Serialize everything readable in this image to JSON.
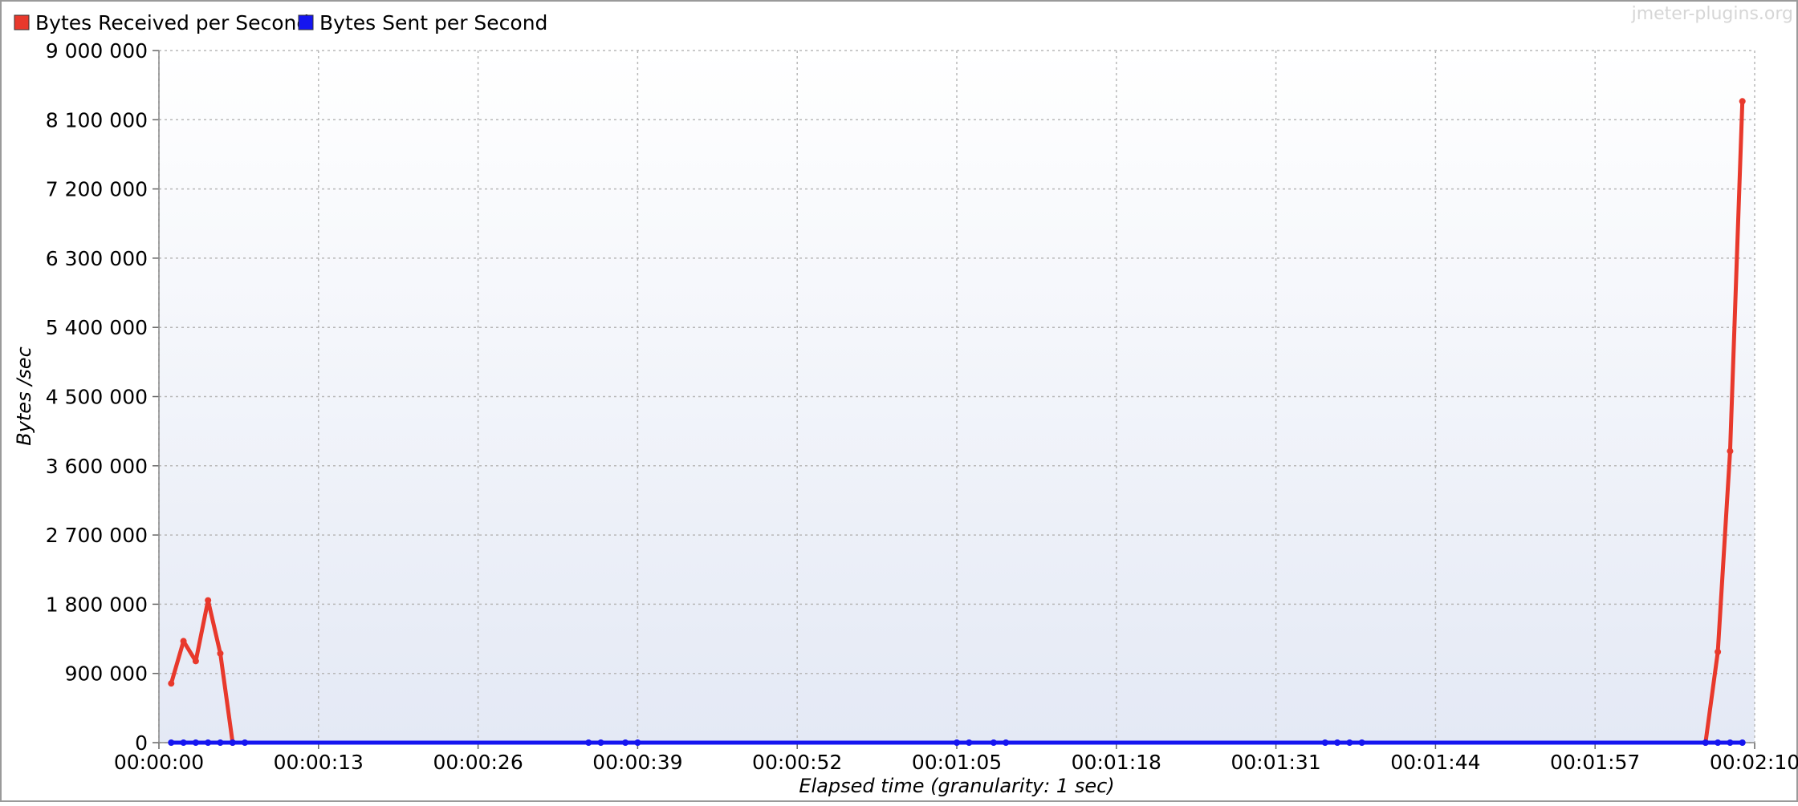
{
  "watermark": "jmeter-plugins.org",
  "colors": {
    "received": "#e8392c",
    "sent": "#1515f0",
    "grid": "#b8b8b8",
    "plot_bg_top": "#ffffff",
    "plot_bg_bottom": "#e4e9f5"
  },
  "chart_data": {
    "type": "line",
    "title": "",
    "xlabel": "Elapsed time (granularity: 1 sec)",
    "ylabel": "Bytes /sec",
    "xlim": [
      0,
      130
    ],
    "ylim": [
      0,
      9000000
    ],
    "grid": true,
    "legend_position": "top-left",
    "x_ticks": [
      0,
      13,
      26,
      39,
      52,
      65,
      78,
      91,
      104,
      117,
      130
    ],
    "x_tick_labels": [
      "00:00:00",
      "00:00:13",
      "00:00:26",
      "00:00:39",
      "00:00:52",
      "00:01:05",
      "00:01:18",
      "00:01:31",
      "00:01:44",
      "00:01:57",
      "00:02:10"
    ],
    "y_ticks": [
      0,
      900000,
      1800000,
      2700000,
      3600000,
      4500000,
      5400000,
      6300000,
      7200000,
      8100000,
      9000000
    ],
    "y_tick_labels": [
      "0",
      "900 000",
      "1 800 000",
      "2 700 000",
      "3 600 000",
      "4 500 000",
      "5 400 000",
      "6 300 000",
      "7 200 000",
      "8 100 000",
      "9 000 000"
    ],
    "series": [
      {
        "name": "Bytes Received per Second",
        "color": "#e8392c",
        "points": [
          [
            1,
            770000
          ],
          [
            2,
            1320000
          ],
          [
            3,
            1060000
          ],
          [
            4,
            1850000
          ],
          [
            5,
            1160000
          ],
          [
            6,
            0
          ],
          [
            126,
            0
          ],
          [
            127,
            1180000
          ],
          [
            128,
            3790000
          ],
          [
            129,
            8340000
          ]
        ]
      },
      {
        "name": "Bytes Sent per Second",
        "color": "#1515f0",
        "points": [
          [
            1,
            0
          ],
          [
            2,
            0
          ],
          [
            3,
            0
          ],
          [
            4,
            0
          ],
          [
            5,
            0
          ],
          [
            6,
            0
          ],
          [
            7,
            0
          ],
          [
            35,
            0
          ],
          [
            36,
            0
          ],
          [
            38,
            0
          ],
          [
            39,
            0
          ],
          [
            65,
            0
          ],
          [
            66,
            0
          ],
          [
            68,
            0
          ],
          [
            69,
            0
          ],
          [
            95,
            0
          ],
          [
            96,
            0
          ],
          [
            97,
            0
          ],
          [
            98,
            0
          ],
          [
            126,
            0
          ],
          [
            127,
            0
          ],
          [
            128,
            0
          ],
          [
            129,
            0
          ]
        ]
      }
    ]
  }
}
